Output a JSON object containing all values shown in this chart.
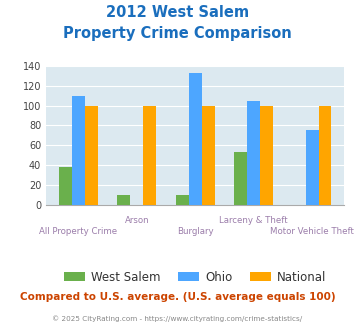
{
  "title_line1": "2012 West Salem",
  "title_line2": "Property Crime Comparison",
  "categories": [
    "All Property Crime",
    "Arson",
    "Burglary",
    "Larceny & Theft",
    "Motor Vehicle Theft"
  ],
  "series": {
    "West Salem": [
      38,
      10,
      10,
      53,
      0
    ],
    "Ohio": [
      110,
      0,
      133,
      105,
      75
    ],
    "National": [
      100,
      100,
      100,
      100,
      100
    ]
  },
  "colors": {
    "West Salem": "#6ab04c",
    "Ohio": "#4da6ff",
    "National": "#ffa500"
  },
  "ylim": [
    0,
    140
  ],
  "yticks": [
    0,
    20,
    40,
    60,
    80,
    100,
    120,
    140
  ],
  "plot_bg": "#dce9f0",
  "title_color": "#1a6ebd",
  "xlabel_color": "#9b7daa",
  "footer_text": "Compared to U.S. average. (U.S. average equals 100)",
  "footer_color": "#cc4400",
  "copyright_text": "© 2025 CityRating.com - https://www.cityrating.com/crime-statistics/",
  "copyright_color": "#888888",
  "bar_width": 0.22
}
